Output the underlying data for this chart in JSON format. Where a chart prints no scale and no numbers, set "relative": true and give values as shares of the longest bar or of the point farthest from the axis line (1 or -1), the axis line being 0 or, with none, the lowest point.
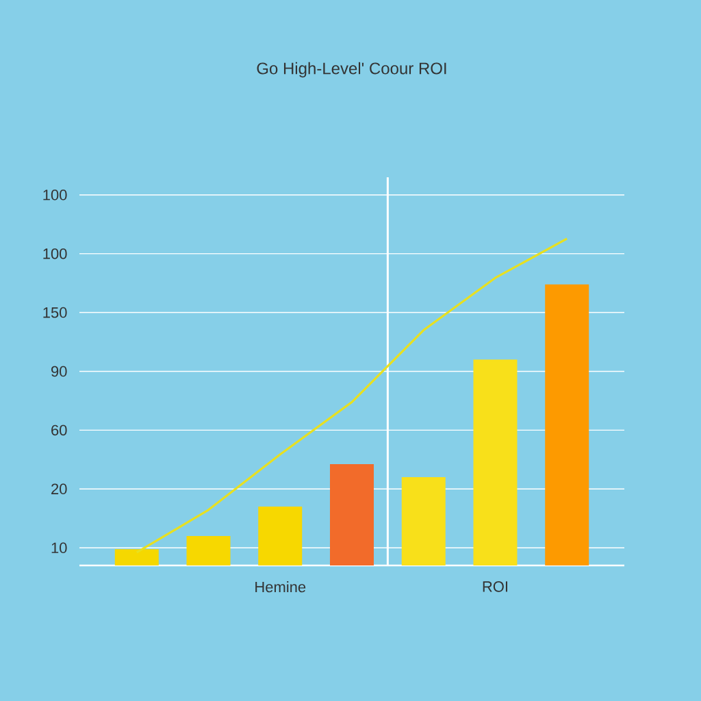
{
  "chart_data": {
    "type": "bar",
    "title": "Go High-Level' Coour ROI",
    "categories": [
      null,
      null,
      "Hemine",
      null,
      null,
      "ROI",
      null
    ],
    "relative": true,
    "series": [
      {
        "values": [
          0.05,
          0.09,
          0.18,
          0.31,
          0.27,
          0.63,
          0.86
        ],
        "colors": [
          "#f5d800",
          "#f7d800",
          "#f7d800",
          "#f26b2a",
          "#f8e01a",
          "#f8e01a",
          "#fd9a00"
        ]
      },
      {
        "type": "line",
        "color": "#e8e020",
        "values": [
          0.04,
          0.17,
          0.34,
          0.5,
          0.72,
          0.88,
          1
        ]
      }
    ],
    "annotations": [
      "10",
      "20",
      "60",
      "90",
      "150",
      "100",
      "100"
    ],
    "grid": true
  }
}
